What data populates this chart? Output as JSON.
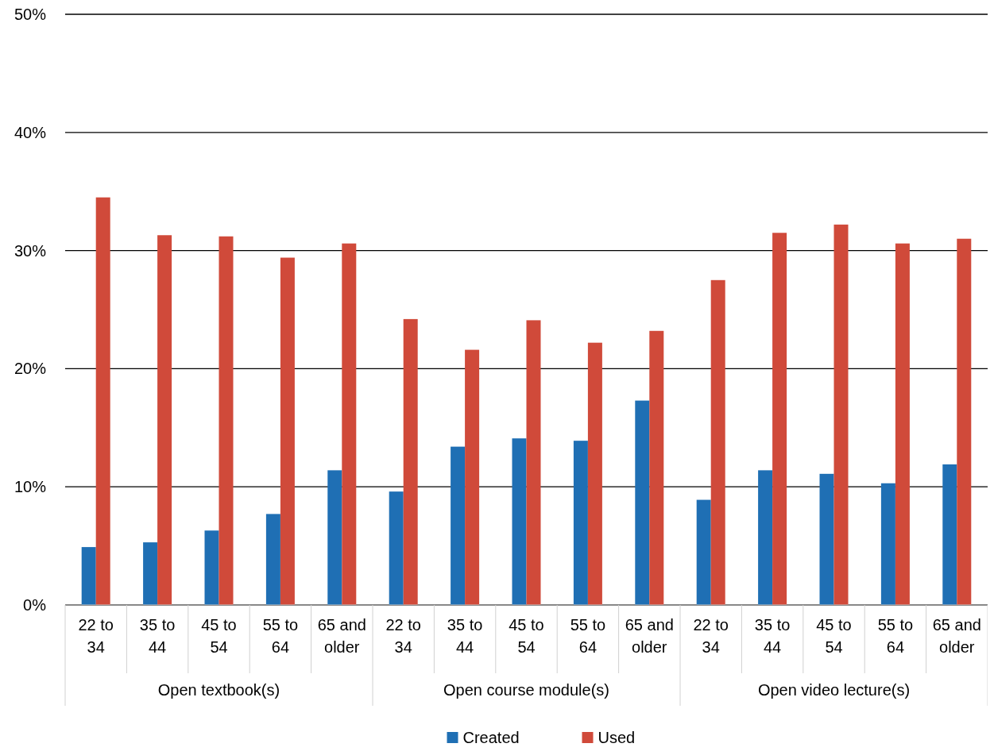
{
  "chart_data": {
    "type": "bar",
    "categories": [
      "22 to 34",
      "35 to 44",
      "45 to 54",
      "55 to 64",
      "65 and older",
      "22 to 34",
      "35 to 44",
      "45 to 54",
      "55 to 64",
      "65 and older",
      "22 to 34",
      "35 to 44",
      "45 to 54",
      "55 to 64",
      "65 and older"
    ],
    "series": [
      {
        "name": "Created",
        "color": "#1f6fb4",
        "values": [
          4.9,
          5.3,
          6.3,
          7.7,
          11.4,
          9.6,
          13.4,
          14.1,
          13.9,
          17.3,
          8.9,
          11.4,
          11.1,
          10.3,
          11.9
        ]
      },
      {
        "name": "Used",
        "color": "#d04a3a",
        "values": [
          34.5,
          31.3,
          31.2,
          29.4,
          30.6,
          24.2,
          21.6,
          24.1,
          22.2,
          23.2,
          27.5,
          31.5,
          32.2,
          30.6,
          31.0
        ]
      }
    ],
    "annotations": [
      "Open textbook(s)",
      "Open course module(s)",
      "Open video lecture(s)"
    ],
    "ylim": [
      0,
      50
    ],
    "yticks": [
      {
        "value": 0,
        "label": "0%"
      },
      {
        "value": 10,
        "label": "10%"
      },
      {
        "value": 20,
        "label": "20%"
      },
      {
        "value": 30,
        "label": "30%"
      },
      {
        "value": 40,
        "label": "40%"
      },
      {
        "value": 50,
        "label": "50%"
      }
    ],
    "grid": "y",
    "legend": "bottom"
  }
}
